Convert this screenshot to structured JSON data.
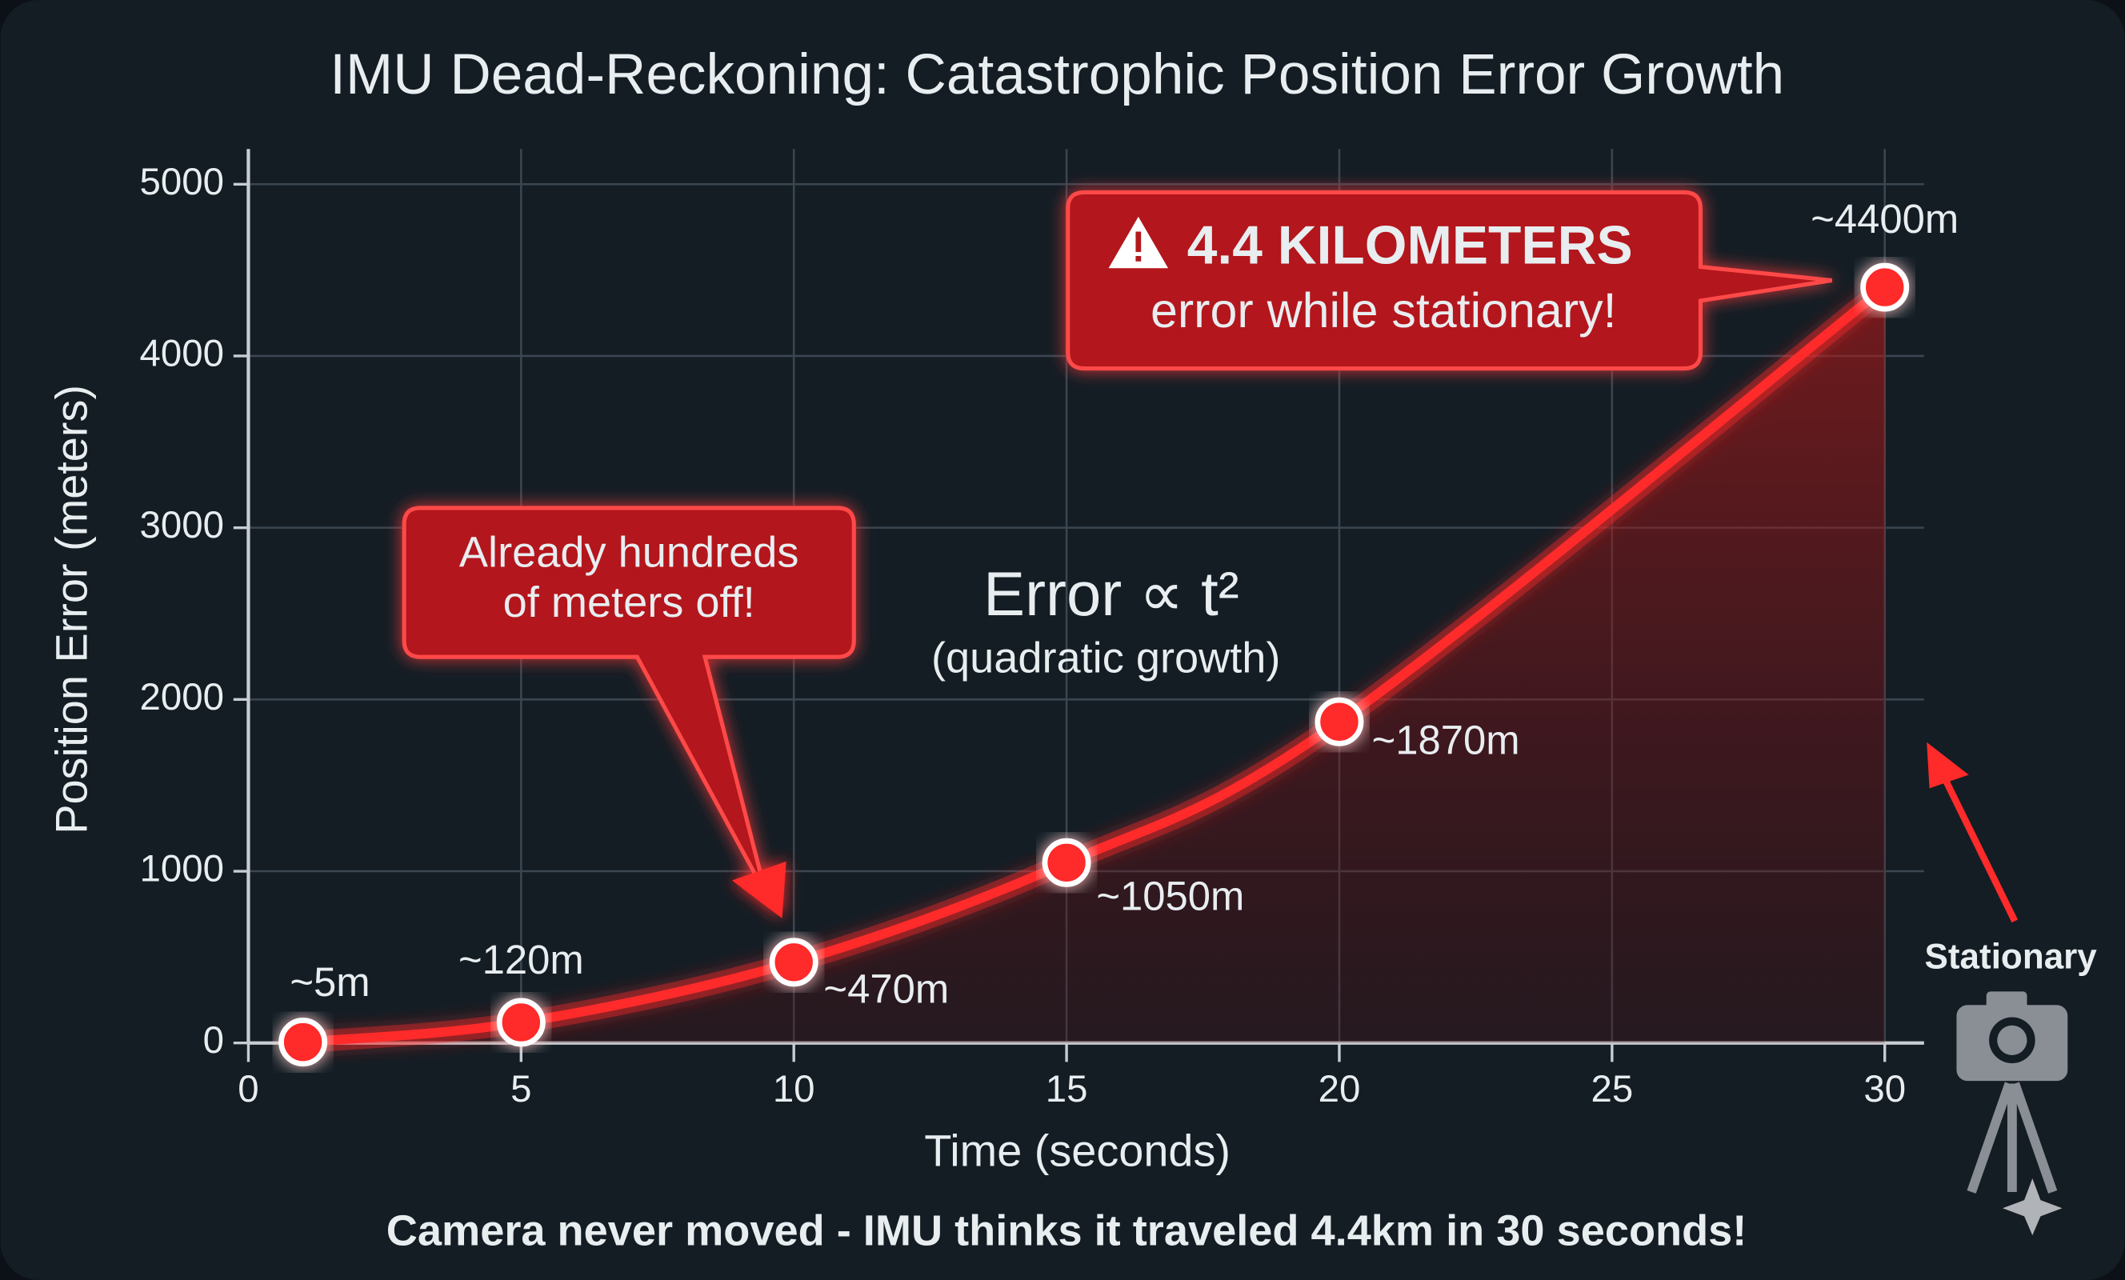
{
  "chart_data": {
    "type": "line",
    "title": "IMU Dead-Reckoning: Catastrophic Position Error Growth",
    "x_label": "Time (seconds)",
    "y_label": "Position Error (meters)",
    "x": [
      1,
      5,
      10,
      15,
      20,
      30
    ],
    "series": [
      {
        "name": "Position error",
        "color": "#ff2b2b",
        "values": [
          5,
          120,
          470,
          1050,
          1870,
          4400
        ],
        "value_labels": [
          "~5m",
          "~120m",
          "~470m",
          "~1050m",
          "~1870m",
          "~4400m"
        ]
      }
    ],
    "xlim": [
      0,
      30
    ],
    "ylim": [
      0,
      5000
    ],
    "xticks": [
      0,
      5,
      10,
      15,
      20,
      25,
      30
    ],
    "yticks": [
      0,
      1000,
      2000,
      3000,
      4000,
      5000
    ],
    "grid": true,
    "annotations": {
      "warning_title": "4.4 KILOMETERS",
      "warning_text": "error while stationary!",
      "callout": [
        "Already hundreds",
        "of meters off!"
      ],
      "formula": "Error ∝ t²",
      "formula_note": "(quadratic growth)",
      "stationary": "Stationary",
      "footer": "Camera never moved - IMU thinks it traveled 4.4km in 30 seconds!"
    }
  }
}
